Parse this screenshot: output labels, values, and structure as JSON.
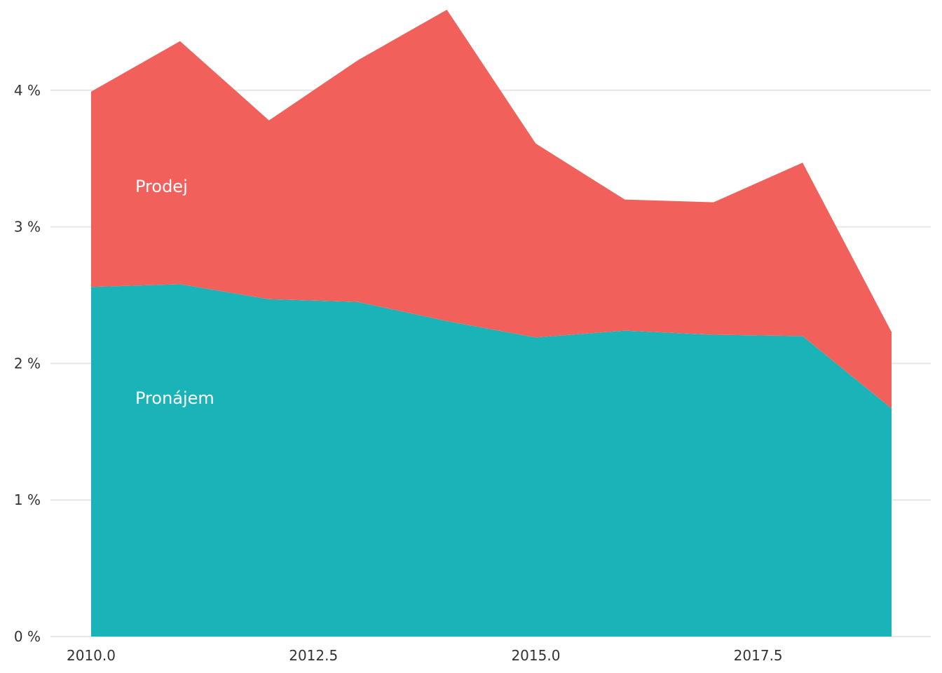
{
  "chart_data": {
    "type": "area",
    "stacked": true,
    "x": [
      2010,
      2011,
      2012,
      2013,
      2014,
      2015,
      2016,
      2017,
      2018,
      2019
    ],
    "series": [
      {
        "name": "Pronájem",
        "color": "#1ab3b7",
        "values": [
          2.56,
          2.58,
          2.47,
          2.45,
          2.31,
          2.19,
          2.24,
          2.21,
          2.2,
          1.67
        ]
      },
      {
        "name": "Prodej",
        "color": "#f2605b",
        "values": [
          1.43,
          1.78,
          1.31,
          1.77,
          2.28,
          1.42,
          0.96,
          0.97,
          1.27,
          0.56
        ]
      }
    ],
    "xlim": [
      2010,
      2019
    ],
    "ylim": [
      0,
      4.6
    ],
    "x_ticks": [
      2010.0,
      2012.5,
      2015.0,
      2017.5
    ],
    "x_tick_labels": [
      "2010.0",
      "2012.5",
      "2015.0",
      "2017.5"
    ],
    "y_ticks": [
      0,
      1,
      2,
      3,
      4
    ],
    "y_tick_labels": [
      "0 %",
      "1 %",
      "2 %",
      "3 %",
      "4 %"
    ],
    "grid": "horizontal",
    "title": "",
    "xlabel": "",
    "ylabel": ""
  }
}
